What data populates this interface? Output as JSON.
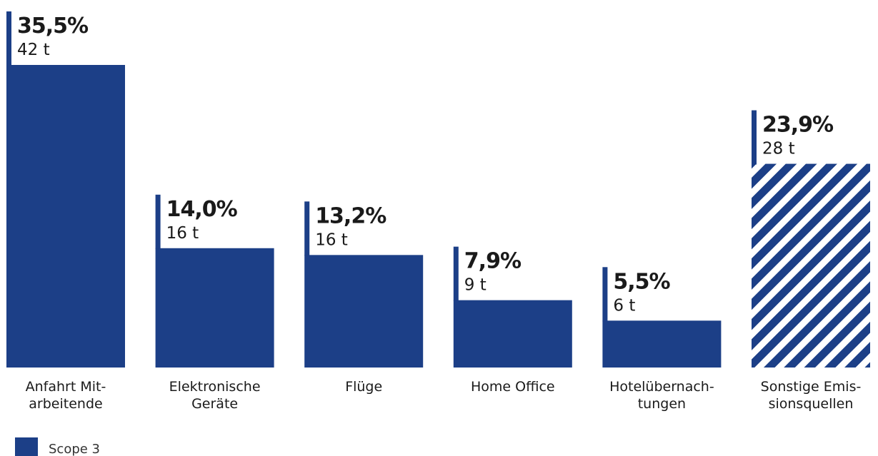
{
  "chart_data": {
    "type": "bar",
    "ylim": [
      0,
      35.5
    ],
    "categories": [
      {
        "label": [
          "Anfahrt Mit-",
          "arbeitende"
        ],
        "percent": 35.5,
        "percent_label": "35,5%",
        "tonnes_label": "42 t",
        "hatched": false
      },
      {
        "label": [
          "Elektronische",
          "Geräte"
        ],
        "percent": 14.0,
        "percent_label": "14,0%",
        "tonnes_label": "16 t",
        "hatched": false
      },
      {
        "label": [
          "Flüge"
        ],
        "percent": 13.2,
        "percent_label": "13,2%",
        "tonnes_label": "16 t",
        "hatched": false
      },
      {
        "label": [
          "Home Office"
        ],
        "percent": 7.9,
        "percent_label": "7,9%",
        "tonnes_label": "9 t",
        "hatched": false
      },
      {
        "label": [
          "Hotelübernach-",
          "tungen"
        ],
        "percent": 5.5,
        "percent_label": "5,5%",
        "tonnes_label": "6 t",
        "hatched": false
      },
      {
        "label": [
          "Sonstige Emis-",
          "sionsquellen"
        ],
        "percent": 23.9,
        "percent_label": "23,9%",
        "tonnes_label": "28 t",
        "hatched": true
      }
    ],
    "legend": [
      {
        "label": "Scope 3",
        "color": "#1c3f87"
      }
    ],
    "colors": {
      "bar": "#1c3f87",
      "hatch_light": "#ffffff"
    }
  }
}
